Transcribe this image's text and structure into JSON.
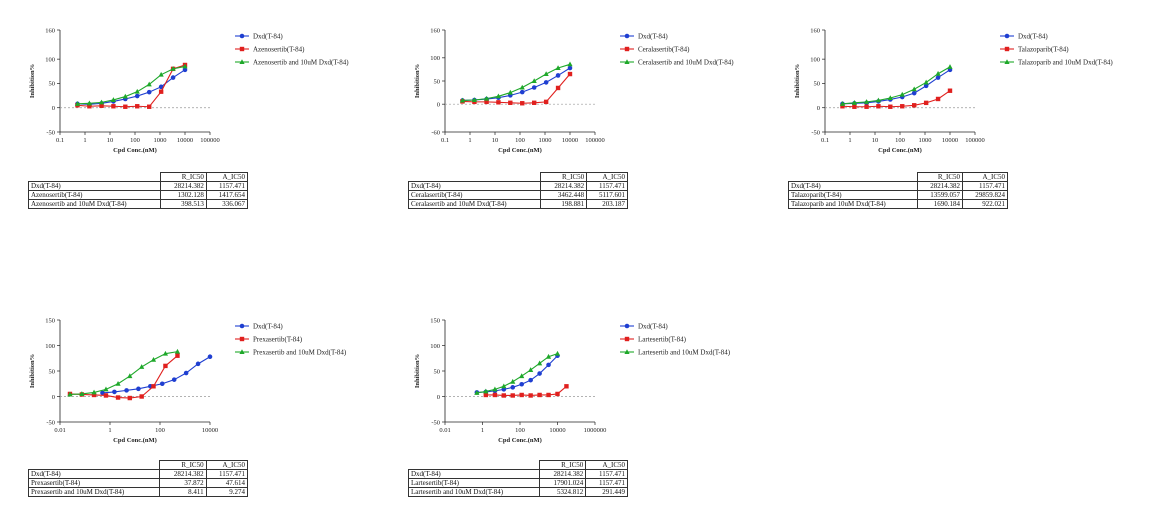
{
  "colors": {
    "dxd": "#1f3fd1",
    "single": "#e0201e",
    "combo": "#1ea82a"
  },
  "table_headers": {
    "r": "R_IC50",
    "a": "A_IC50"
  },
  "chart_data": [
    {
      "type": "line",
      "xscale": "log",
      "ylabel": "Inhibition%",
      "xlabel": "Cpd Conc.(nM)",
      "ylim": [
        -50,
        160
      ],
      "yticks": [
        "160",
        "100",
        "50",
        "0",
        "-50"
      ],
      "xlim": [
        0.1,
        100000
      ],
      "xticks": [
        "0.1",
        "1",
        "10",
        "100",
        "1000",
        "10000",
        "100000"
      ],
      "dashed_zero_line": true,
      "legend_position": "right",
      "series": [
        {
          "name": "Dxd(T-84)",
          "x": [
            0.5,
            1.5,
            4.6,
            13.7,
            41,
            123,
            370,
            1111,
            3333,
            10000
          ],
          "y": [
            8,
            7,
            9,
            13,
            18,
            24,
            32,
            43,
            62,
            78
          ]
        },
        {
          "name": "Azenosertib(T-84)",
          "x": [
            0.5,
            1.5,
            4.6,
            13.7,
            41,
            123,
            370,
            1111,
            3333,
            10000
          ],
          "y": [
            5,
            3,
            4,
            3,
            2,
            3,
            2,
            33,
            80,
            88
          ]
        },
        {
          "name": "Azenosertib and 10uM Dxd(T-84)",
          "x": [
            0.5,
            1.5,
            4.6,
            13.7,
            41,
            123,
            370,
            1111,
            3333,
            10000
          ],
          "y": [
            8,
            9,
            11,
            16,
            23,
            33,
            48,
            68,
            80,
            85
          ]
        }
      ],
      "table": [
        [
          "Dxd(T-84)",
          "28214.382",
          "1157.471"
        ],
        [
          "Azenosertib(T-84)",
          "1302.128",
          "1417.654"
        ],
        [
          "Azenosertib and 10uM Dxd(T-84)",
          "398.513",
          "336.067"
        ]
      ]
    },
    {
      "type": "line",
      "xscale": "log",
      "ylabel": "Inhibition%",
      "xlabel": "Cpd Conc.(nM)",
      "ylim": [
        -60,
        160
      ],
      "yticks": [
        "160",
        "100",
        "50",
        "0",
        "-60"
      ],
      "xlim": [
        0.1,
        100000
      ],
      "xticks": [
        "0.1",
        "1",
        "10",
        "100",
        "1000",
        "10000",
        "100000"
      ],
      "dashed_zero_line": true,
      "legend_position": "right",
      "series": [
        {
          "name": "Dxd(T-84)",
          "x": [
            0.5,
            1.5,
            4.6,
            13.7,
            41,
            123,
            370,
            1111,
            3333,
            10000
          ],
          "y": [
            8,
            9,
            11,
            14,
            19,
            26,
            36,
            47,
            62,
            78
          ]
        },
        {
          "name": "Ceralasertib(T-84)",
          "x": [
            0.5,
            1.5,
            4.6,
            13.7,
            41,
            123,
            370,
            1111,
            3333,
            10000
          ],
          "y": [
            6,
            5,
            5,
            4,
            3,
            2,
            3,
            5,
            35,
            65
          ]
        },
        {
          "name": "Ceralasertib and 10uM Dxd(T-84)",
          "x": [
            0.5,
            1.5,
            4.6,
            13.7,
            41,
            123,
            370,
            1111,
            3333,
            10000
          ],
          "y": [
            8,
            9,
            12,
            17,
            25,
            36,
            50,
            65,
            78,
            86
          ]
        }
      ],
      "table": [
        [
          "Dxd(T-84)",
          "28214.382",
          "1157.471"
        ],
        [
          "Ceralasertib(T-84)",
          "3462.448",
          "5117.601"
        ],
        [
          "Ceralasertib and 10uM Dxd(T-84)",
          "198.881",
          "203.187"
        ]
      ]
    },
    {
      "type": "line",
      "xscale": "log",
      "ylabel": "Inhibition%",
      "xlabel": "Cpd Conc.(nM)",
      "ylim": [
        -50,
        160
      ],
      "yticks": [
        "160",
        "100",
        "50",
        "0",
        "-50"
      ],
      "xlim": [
        0.1,
        100000
      ],
      "xticks": [
        "0.1",
        "1",
        "10",
        "100",
        "1000",
        "10000",
        "100000"
      ],
      "dashed_zero_line": true,
      "legend_position": "right",
      "series": [
        {
          "name": "Dxd(T-84)",
          "x": [
            0.5,
            1.5,
            4.6,
            13.7,
            41,
            123,
            370,
            1111,
            3333,
            10000
          ],
          "y": [
            8,
            9,
            10,
            13,
            17,
            22,
            30,
            45,
            62,
            78
          ]
        },
        {
          "name": "Talazoparib(T-84)",
          "x": [
            0.5,
            1.5,
            4.6,
            13.7,
            41,
            123,
            370,
            1111,
            3333,
            10000
          ],
          "y": [
            3,
            2,
            2,
            3,
            2,
            3,
            5,
            10,
            18,
            35
          ]
        },
        {
          "name": "Talazoparib and 10uM Dxd(T-84)",
          "x": [
            0.5,
            1.5,
            4.6,
            13.7,
            41,
            123,
            370,
            1111,
            3333,
            10000
          ],
          "y": [
            8,
            10,
            12,
            15,
            20,
            27,
            38,
            52,
            70,
            84
          ]
        }
      ],
      "table": [
        [
          "Dxd(T-84)",
          "28214.382",
          "1157.471"
        ],
        [
          "Talazoparib(T-84)",
          "13599.057",
          "29859.824"
        ],
        [
          "Talazoparib and 10uM Dxd(T-84)",
          "1690.184",
          "922.021"
        ]
      ]
    },
    {
      "type": "line",
      "xscale": "log",
      "ylabel": "Inhibition%",
      "xlabel": "Cpd Conc.(nM)",
      "ylim": [
        -50,
        150
      ],
      "yticks": [
        "150",
        "100",
        "50",
        "0",
        "-50"
      ],
      "xlim": [
        0.01,
        10000
      ],
      "xticks": [
        "0.01",
        "1",
        "100",
        "10000"
      ],
      "dashed_zero_line": true,
      "legend_position": "right",
      "series": [
        {
          "name": "Dxd(T-84)",
          "x": [
            0.5,
            1.5,
            4.6,
            13.7,
            41,
            123,
            370,
            1111,
            3333,
            10000
          ],
          "y": [
            7,
            9,
            12,
            15,
            20,
            25,
            33,
            46,
            64,
            78
          ]
        },
        {
          "name": "Prexasertib(T-84)",
          "x": [
            0.025,
            0.075,
            0.23,
            0.69,
            2.1,
            6.2,
            18.5,
            55,
            165,
            500
          ],
          "y": [
            5,
            4,
            3,
            2,
            -2,
            -3,
            0,
            20,
            60,
            80
          ]
        },
        {
          "name": "Prexasertib and 10uM Dxd(T-84)",
          "x": [
            0.025,
            0.075,
            0.23,
            0.69,
            2.1,
            6.2,
            18.5,
            55,
            165,
            500
          ],
          "y": [
            4,
            5,
            8,
            14,
            25,
            40,
            58,
            72,
            84,
            88
          ]
        }
      ],
      "table": [
        [
          "Dxd(T-84)",
          "28214.382",
          "1157.471"
        ],
        [
          "Prexasertib(T-84)",
          "37.872",
          "47.614"
        ],
        [
          "Prexasertib and 10uM Dxd(T-84)",
          "8.411",
          "9.274"
        ]
      ]
    },
    {
      "type": "line",
      "xscale": "log",
      "ylabel": "Inhibition%",
      "xlabel": "Cpd Conc.(nM)",
      "ylim": [
        -50,
        150
      ],
      "yticks": [
        "150",
        "100",
        "50",
        "0",
        "-50"
      ],
      "xlim": [
        0.01,
        1000000
      ],
      "xticks": [
        "0.01",
        "1",
        "100",
        "10000",
        "1000000"
      ],
      "dashed_zero_line": true,
      "legend_position": "right",
      "series": [
        {
          "name": "Dxd(T-84)",
          "x": [
            0.5,
            1.5,
            4.6,
            13.7,
            41,
            123,
            370,
            1111,
            3333,
            10000
          ],
          "y": [
            8,
            9,
            11,
            14,
            18,
            24,
            32,
            45,
            62,
            80
          ]
        },
        {
          "name": "Lartesertib(T-84)",
          "x": [
            1.5,
            4.6,
            13.7,
            41,
            123,
            370,
            1111,
            3333,
            10000,
            30000
          ],
          "y": [
            3,
            3,
            2,
            2,
            3,
            2,
            3,
            3,
            5,
            20
          ]
        },
        {
          "name": "Lartesertib and 10uM Dxd(T-84)",
          "x": [
            0.5,
            1.5,
            4.6,
            13.7,
            41,
            123,
            370,
            1111,
            3333,
            10000
          ],
          "y": [
            7,
            10,
            14,
            20,
            29,
            40,
            52,
            65,
            78,
            84
          ]
        }
      ],
      "table": [
        [
          "Dxd(T-84)",
          "28214.382",
          "1157.471"
        ],
        [
          "Lartesertib(T-84)",
          "17901.024",
          "1157.471"
        ],
        [
          "Lartesertib and 10uM Dxd(T-84)",
          "5324.812",
          "291.449"
        ]
      ]
    }
  ]
}
